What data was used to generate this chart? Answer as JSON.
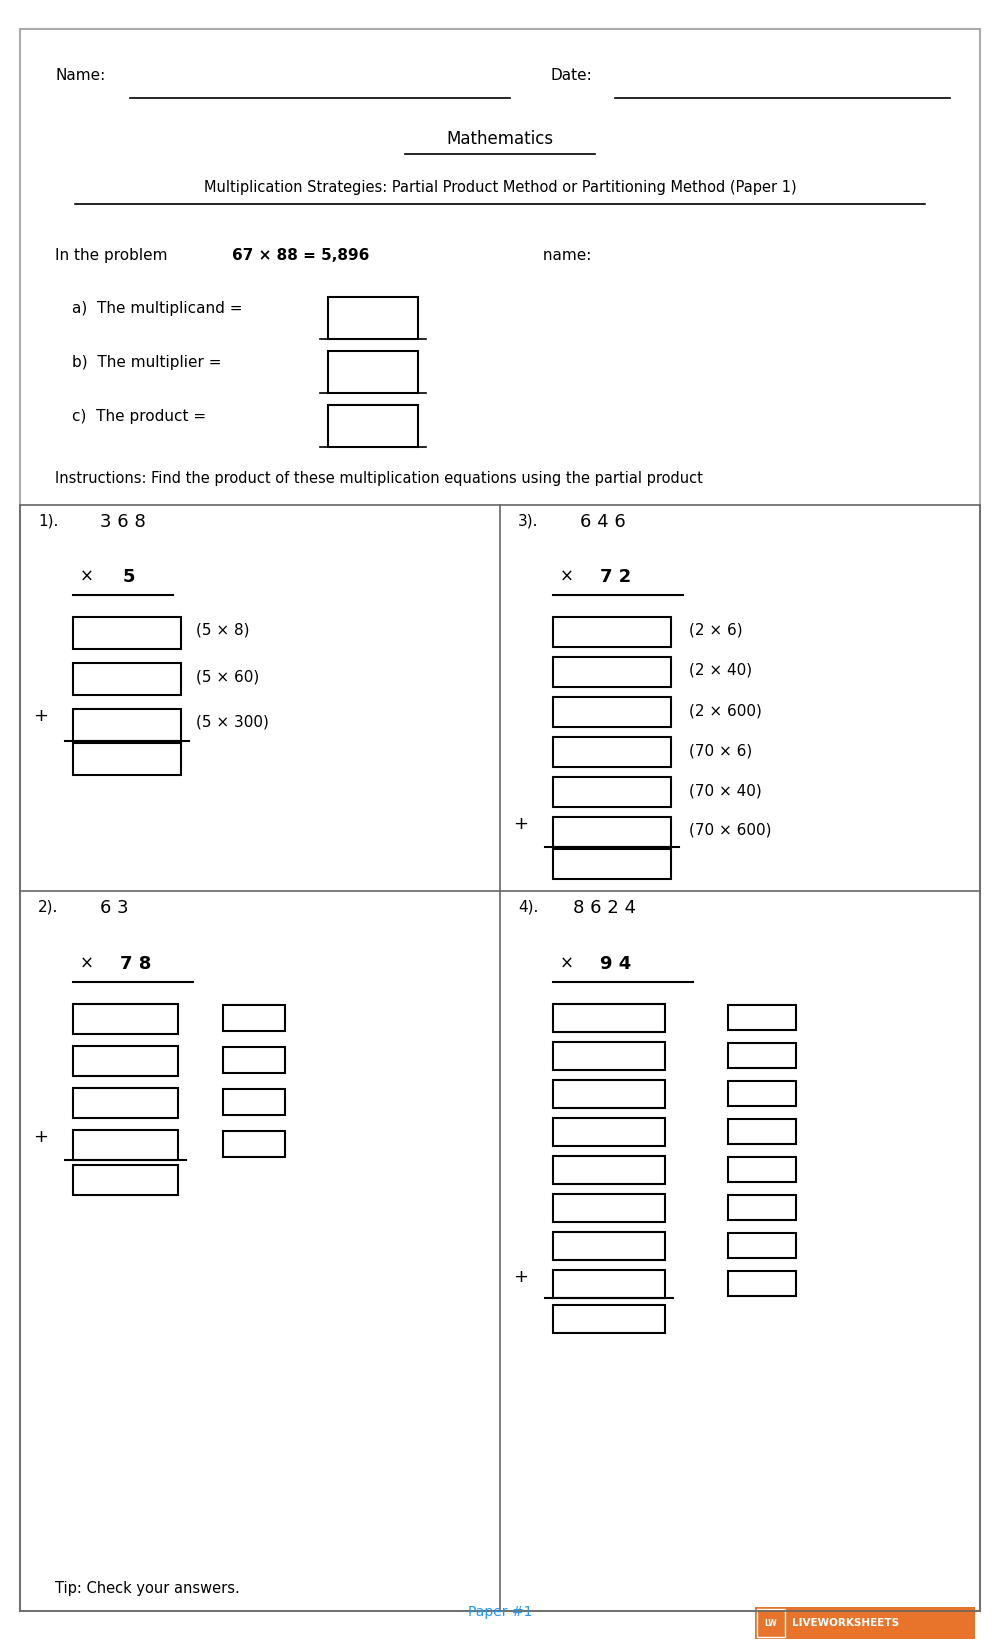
{
  "title1": "Mathematics",
  "title2": "Multiplication Strategies: Partial Product Method or Partitioning Method (Paper 1)",
  "name_label": "Name:",
  "date_label": "Date:",
  "problem_intro": "In the problem ",
  "problem_bold": "67 × 88 = 5,896",
  "problem_end": " name:",
  "parts": [
    "a)  The multiplicand =",
    "b)  The multiplier =",
    "c)  The product ="
  ],
  "instructions": "Instructions: Find the product of these multiplication equations using the partial product",
  "q1_num": "3 6 8",
  "q1_mult_x": "×",
  "q1_mult_n": "5",
  "q1_labels": [
    "(5 × 8)",
    "(5 × 60)",
    "(5 × 300)"
  ],
  "q3_num": "6 4 6",
  "q3_mult_x": "×",
  "q3_mult_n": "7 2",
  "q3_labels": [
    "(2 × 6)",
    "(2 × 40)",
    "(2 × 600)",
    "(70 × 6)",
    "(70 × 40)",
    "(70 × 600)"
  ],
  "q2_num": "6 3",
  "q2_mult_x": "×",
  "q2_mult_n": "7 8",
  "q4_num": "8 6 2 4",
  "q4_mult_x": "×",
  "q4_mult_n": "9 4",
  "tip": "Tip: Check your answers.",
  "footer": "Paper #1",
  "lws_text": "LIVEWORKSHEETS",
  "bg_color": "#ffffff",
  "border_color": "#aaaaaa",
  "lws_bg": "#e8732a",
  "footer_color": "#2196F3"
}
